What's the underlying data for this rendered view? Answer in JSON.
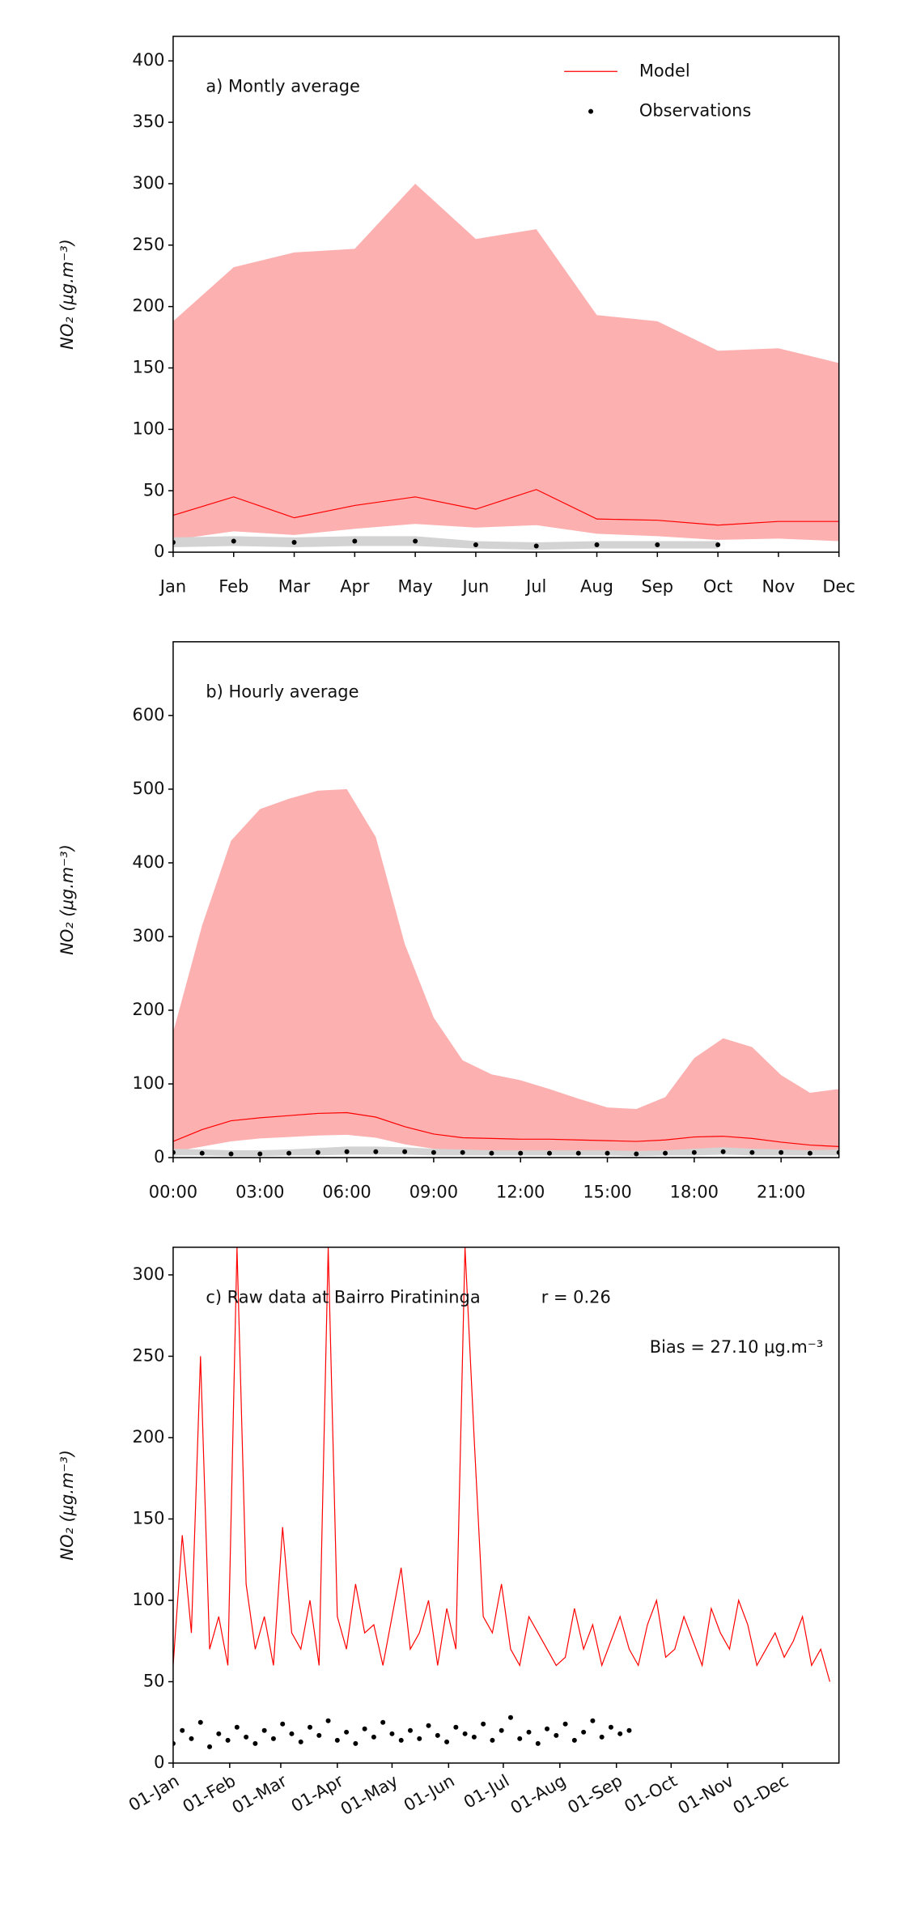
{
  "chart_data": [
    {
      "type": "line",
      "title": "a) Montly average",
      "ylabel": "NO₂ (μg.m⁻³)",
      "legend": "upper right",
      "categories": [
        "Jan",
        "Feb",
        "Mar",
        "Apr",
        "May",
        "Jun",
        "Jul",
        "Aug",
        "Sep",
        "Oct",
        "Nov",
        "Dec"
      ],
      "ylim": [
        0,
        420
      ],
      "yticks": [
        0,
        50,
        100,
        150,
        200,
        250,
        300,
        350,
        400
      ],
      "series": [
        {
          "name": "Model",
          "color": "#ff0000",
          "band_color": "#fcb0b0",
          "values": [
            30,
            45,
            28,
            38,
            45,
            35,
            51,
            27,
            26,
            22,
            25,
            25
          ],
          "upper": [
            188,
            232,
            244,
            247,
            300,
            255,
            263,
            193,
            188,
            164,
            166,
            154
          ],
          "lower": [
            10,
            17,
            14,
            19,
            23,
            20,
            22,
            15,
            13,
            10,
            11,
            9
          ]
        },
        {
          "name": "Observations",
          "color": "#000000",
          "marker": "dot",
          "band_color": "#d3d3d3",
          "values": [
            8,
            9,
            8,
            9,
            9,
            6,
            5,
            6,
            6,
            6,
            null,
            null
          ],
          "upper": [
            12,
            13,
            12,
            13,
            13,
            9,
            8,
            9,
            9,
            9,
            null,
            null
          ],
          "lower": [
            4,
            5,
            4,
            5,
            5,
            3,
            2,
            3,
            3,
            3,
            null,
            null
          ]
        }
      ]
    },
    {
      "type": "line",
      "title": "b) Hourly average",
      "ylabel": "NO₂ (μg.m⁻³)",
      "x": [
        0,
        1,
        2,
        3,
        4,
        5,
        6,
        7,
        8,
        9,
        10,
        11,
        12,
        13,
        14,
        15,
        16,
        17,
        18,
        19,
        20,
        21,
        22,
        23
      ],
      "xlim": [
        0,
        23
      ],
      "xticks": [
        {
          "value": 0,
          "label": "00:00"
        },
        {
          "value": 3,
          "label": "03:00"
        },
        {
          "value": 6,
          "label": "06:00"
        },
        {
          "value": 9,
          "label": "09:00"
        },
        {
          "value": 12,
          "label": "12:00"
        },
        {
          "value": 15,
          "label": "15:00"
        },
        {
          "value": 18,
          "label": "18:00"
        },
        {
          "value": 21,
          "label": "21:00"
        }
      ],
      "ylim": [
        0,
        700
      ],
      "yticks": [
        0,
        100,
        200,
        300,
        400,
        500,
        600
      ],
      "series": [
        {
          "name": "Model",
          "color": "#ff0000",
          "band_color": "#fcb0b0",
          "values": [
            22,
            38,
            50,
            54,
            57,
            60,
            61,
            55,
            42,
            32,
            27,
            26,
            25,
            25,
            24,
            23,
            22,
            24,
            28,
            29,
            26,
            21,
            17,
            15
          ],
          "upper": [
            170,
            315,
            430,
            473,
            487,
            498,
            500,
            435,
            290,
            190,
            132,
            113,
            105,
            93,
            80,
            68,
            66,
            82,
            135,
            162,
            150,
            112,
            88,
            93
          ],
          "lower": [
            8,
            15,
            22,
            26,
            28,
            30,
            31,
            27,
            18,
            12,
            10,
            9,
            9,
            9,
            8,
            7,
            7,
            8,
            10,
            11,
            10,
            8,
            6,
            5
          ]
        },
        {
          "name": "Observations",
          "color": "#000000",
          "marker": "dot",
          "band_color": "#d3d3d3",
          "values": [
            7,
            6,
            5,
            5,
            6,
            7,
            8,
            8,
            8,
            7,
            7,
            6,
            6,
            6,
            6,
            6,
            5,
            6,
            7,
            8,
            7,
            7,
            6,
            7
          ],
          "upper": [
            12,
            11,
            10,
            10,
            11,
            13,
            15,
            15,
            14,
            12,
            11,
            10,
            10,
            10,
            10,
            10,
            9,
            10,
            12,
            14,
            12,
            11,
            10,
            11
          ],
          "lower": [
            3,
            3,
            2,
            2,
            3,
            3,
            4,
            4,
            4,
            3,
            3,
            3,
            3,
            3,
            3,
            3,
            2,
            3,
            3,
            4,
            3,
            3,
            3,
            3
          ]
        }
      ]
    },
    {
      "type": "line",
      "title": "c) Raw data at Bairro Piratininga",
      "ylabel": "NO₂ (μg.m⁻³)",
      "annotations": [
        "r = 0.26",
        "Bias = 27.10 μg.m⁻³"
      ],
      "x": [
        0,
        5,
        10,
        15,
        20,
        25,
        30,
        35,
        40,
        45,
        50,
        55,
        60,
        65,
        70,
        75,
        80,
        85,
        90,
        95,
        100,
        105,
        110,
        115,
        120,
        125,
        130,
        135,
        140,
        145,
        150,
        155,
        160,
        165,
        170,
        175,
        180,
        185,
        190,
        195,
        200,
        205,
        210,
        215,
        220,
        225,
        230,
        235,
        240,
        245,
        250,
        255,
        260,
        265,
        270,
        275,
        280,
        285,
        290,
        295,
        300,
        305,
        310,
        315,
        320,
        325,
        330,
        335,
        340,
        345,
        350,
        355,
        360
      ],
      "xlim": [
        0,
        365
      ],
      "xticks": [
        {
          "value": 0,
          "label": "01-Jan"
        },
        {
          "value": 31,
          "label": "01-Feb"
        },
        {
          "value": 59,
          "label": "01-Mar"
        },
        {
          "value": 90,
          "label": "01-Apr"
        },
        {
          "value": 120,
          "label": "01-May"
        },
        {
          "value": 151,
          "label": "01-Jun"
        },
        {
          "value": 181,
          "label": "01-Jul"
        },
        {
          "value": 212,
          "label": "01-Aug"
        },
        {
          "value": 243,
          "label": "01-Sep"
        },
        {
          "value": 273,
          "label": "01-Oct"
        },
        {
          "value": 304,
          "label": "01-Nov"
        },
        {
          "value": 334,
          "label": "01-Dec"
        }
      ],
      "ylim": [
        0,
        317
      ],
      "yticks": [
        0,
        50,
        100,
        150,
        200,
        250,
        300
      ],
      "series": [
        {
          "name": "Model",
          "color": "#ff0000",
          "values": [
            60,
            140,
            80,
            250,
            70,
            90,
            60,
            317,
            110,
            70,
            90,
            60,
            145,
            80,
            70,
            100,
            60,
            317,
            90,
            70,
            110,
            80,
            85,
            60,
            90,
            120,
            70,
            80,
            100,
            60,
            95,
            70,
            317,
            200,
            90,
            80,
            110,
            70,
            60,
            90,
            80,
            70,
            60,
            65,
            95,
            70,
            85,
            60,
            75,
            90,
            70,
            60,
            85,
            100,
            65,
            70,
            90,
            75,
            60,
            95,
            80,
            70,
            100,
            85,
            60,
            70,
            80,
            65,
            75,
            90,
            60,
            70,
            50
          ]
        },
        {
          "name": "Observations",
          "color": "#000000",
          "marker": "dot",
          "values": [
            12,
            20,
            15,
            25,
            10,
            18,
            14,
            22,
            16,
            12,
            20,
            15,
            24,
            18,
            13,
            22,
            17,
            26,
            14,
            19,
            12,
            21,
            16,
            25,
            18,
            14,
            20,
            15,
            23,
            17,
            13,
            22,
            18,
            16,
            24,
            14,
            20,
            28,
            15,
            19,
            12,
            21,
            17,
            24,
            14,
            19,
            26,
            16,
            22,
            18,
            20,
            null,
            null,
            null,
            null,
            null,
            null,
            null,
            null,
            null,
            null,
            null,
            null,
            null,
            null,
            null,
            null,
            null,
            null,
            null,
            null,
            null,
            null
          ]
        }
      ]
    }
  ]
}
